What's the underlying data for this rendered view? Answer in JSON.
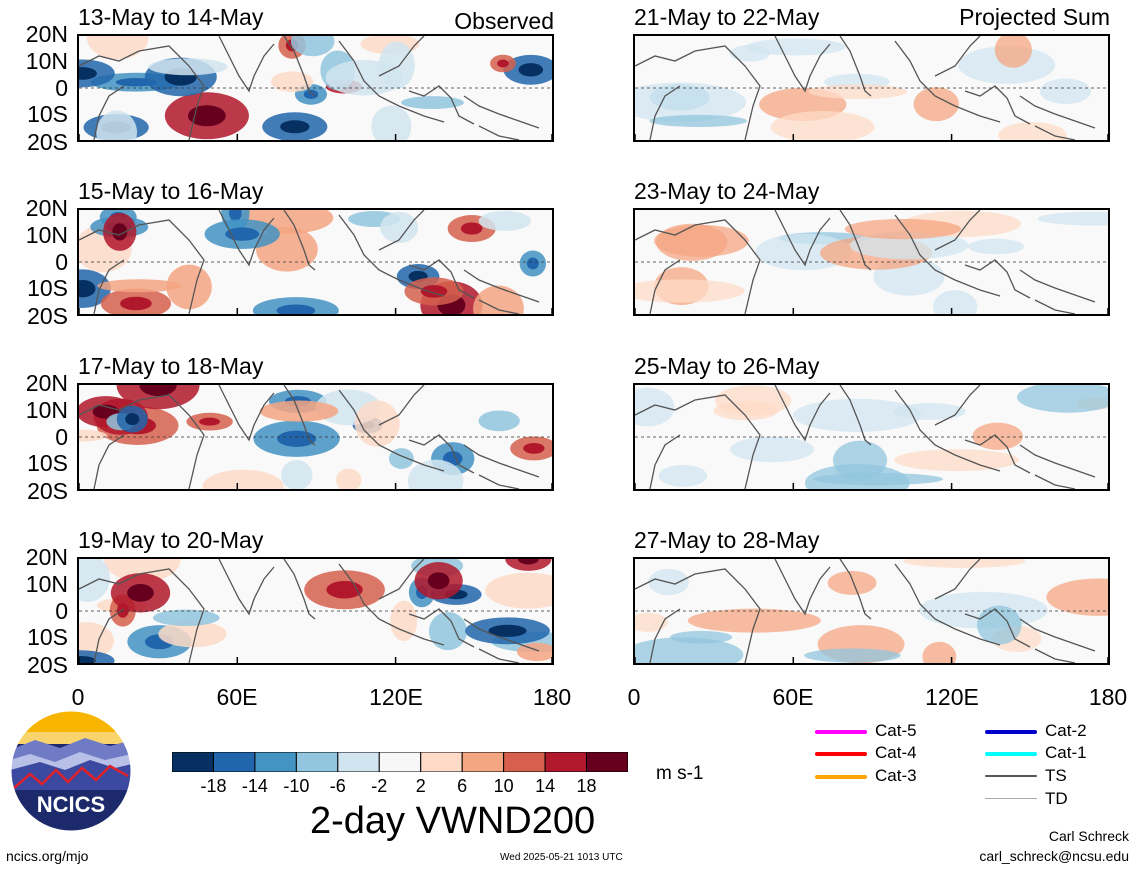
{
  "header": {
    "observed_label": "Observed",
    "projected_label": "Projected Sum"
  },
  "panels_observed": [
    "13-May to 14-May",
    "15-May to 16-May",
    "17-May to 18-May",
    "19-May to 20-May"
  ],
  "panels_projected": [
    "21-May to 22-May",
    "23-May to 24-May",
    "25-May to 26-May",
    "27-May to 28-May"
  ],
  "lat_labels": [
    "20N",
    "10N",
    "0",
    "10S",
    "20S"
  ],
  "lon_labels": [
    "0",
    "60E",
    "120E",
    "180"
  ],
  "colorbar": {
    "colors": [
      "#053061",
      "#2166ac",
      "#4393c3",
      "#92c5de",
      "#d1e5f0",
      "#f7f7f7",
      "#fddbc7",
      "#f4a582",
      "#d6604d",
      "#b2182b",
      "#67001f"
    ],
    "ticks": [
      "-18",
      "-14",
      "-10",
      "-6",
      "-2",
      "2",
      "6",
      "10",
      "14",
      "18"
    ],
    "units": "m s-1"
  },
  "title": "2-day VWND200",
  "legend": [
    {
      "label": "Cat-5",
      "color": "#ff00ff"
    },
    {
      "label": "Cat-4",
      "color": "#ff0000"
    },
    {
      "label": "Cat-3",
      "color": "#ffa500"
    },
    {
      "label": "Cat-2",
      "color": "#0000cc"
    },
    {
      "label": "Cat-1",
      "color": "#00ffff"
    },
    {
      "label": "TS",
      "color": "#555555"
    },
    {
      "label": "TD",
      "color": "#aaaaaa"
    }
  ],
  "logo_text": "NCICS",
  "footer": {
    "url": "ncics.org/mjo",
    "timestamp": "Wed 2025-05-21 1013 UTC",
    "author": "Carl Schreck",
    "email": "carl_schreck@ncsu.edu"
  }
}
